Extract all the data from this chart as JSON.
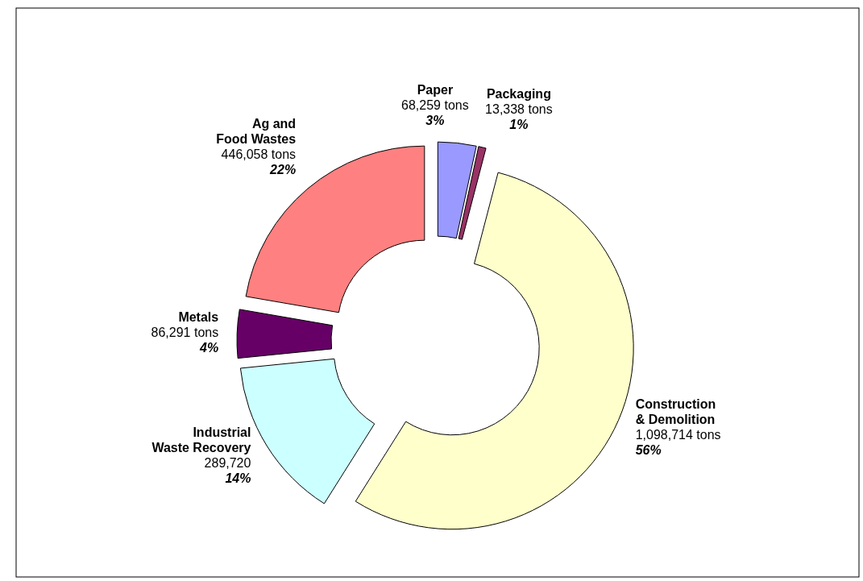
{
  "chart_data": {
    "type": "donut",
    "categories": [
      "Paper",
      "Packaging",
      "Construction & Demolition",
      "Industrial Waste Recovery",
      "Metals",
      "Ag and Food Wastes"
    ],
    "values": [
      68259,
      13338,
      1098714,
      289720,
      86291,
      446058
    ],
    "colors": [
      "#9999ff",
      "#993366",
      "#ffffcc",
      "#ccffff",
      "#660066",
      "#ff8080"
    ],
    "value_labels": [
      "68,259 tons\n3%",
      "13,338 tons\n1%",
      "1,098,714 tons\n56%",
      "289,720\n14%",
      "86,291 tons\n4%",
      "446,058 tons\n22%"
    ]
  }
}
